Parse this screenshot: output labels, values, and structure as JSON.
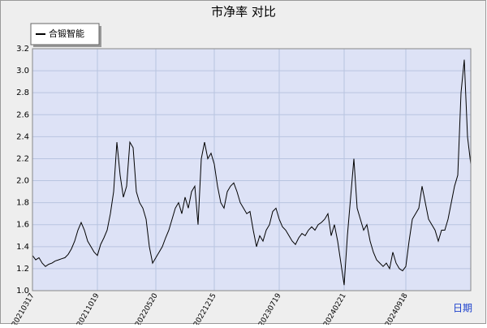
{
  "chart_data": {
    "type": "line",
    "title": "市净率  对比",
    "x_label": "日期",
    "categories": [
      "20210317",
      null,
      null,
      null,
      null,
      null,
      null,
      null,
      null,
      null,
      null,
      null,
      null,
      null,
      null,
      null,
      null,
      null,
      null,
      null,
      "20211019",
      null,
      null,
      null,
      null,
      null,
      null,
      null,
      null,
      null,
      null,
      null,
      null,
      null,
      null,
      null,
      null,
      null,
      "20220520",
      null,
      null,
      null,
      null,
      null,
      null,
      null,
      null,
      null,
      null,
      null,
      null,
      null,
      null,
      null,
      null,
      null,
      "20221215",
      null,
      null,
      null,
      null,
      null,
      null,
      null,
      null,
      null,
      null,
      null,
      null,
      null,
      null,
      null,
      null,
      null,
      null,
      null,
      "20230719",
      null,
      null,
      null,
      null,
      null,
      null,
      null,
      null,
      null,
      null,
      null,
      null,
      null,
      null,
      null,
      null,
      null,
      null,
      null,
      "20240221",
      null,
      null,
      null,
      null,
      null,
      null,
      null,
      null,
      null,
      null,
      null,
      null,
      null,
      null,
      null,
      null,
      null,
      null,
      "20240918",
      null,
      null,
      null,
      null,
      null,
      null,
      null,
      null,
      null,
      null,
      null,
      null,
      null,
      null,
      null,
      null,
      null,
      null,
      null,
      null
    ],
    "series": [
      {
        "name": "合锻智能",
        "color": "#000000",
        "values": [
          1.32,
          1.28,
          1.3,
          1.25,
          1.22,
          1.24,
          1.25,
          1.27,
          1.28,
          1.29,
          1.3,
          1.33,
          1.38,
          1.45,
          1.55,
          1.62,
          1.55,
          1.45,
          1.4,
          1.35,
          1.32,
          1.42,
          1.48,
          1.55,
          1.7,
          1.9,
          2.35,
          2.05,
          1.85,
          1.95,
          2.35,
          2.3,
          1.9,
          1.8,
          1.75,
          1.65,
          1.4,
          1.25,
          1.3,
          1.35,
          1.4,
          1.48,
          1.55,
          1.65,
          1.75,
          1.8,
          1.7,
          1.85,
          1.75,
          1.9,
          1.95,
          1.6,
          2.2,
          2.35,
          2.2,
          2.25,
          2.15,
          1.95,
          1.8,
          1.75,
          1.9,
          1.95,
          1.98,
          1.9,
          1.8,
          1.75,
          1.7,
          1.72,
          1.55,
          1.4,
          1.5,
          1.45,
          1.55,
          1.6,
          1.72,
          1.75,
          1.65,
          1.58,
          1.55,
          1.5,
          1.45,
          1.42,
          1.48,
          1.52,
          1.5,
          1.55,
          1.58,
          1.55,
          1.6,
          1.62,
          1.65,
          1.7,
          1.5,
          1.6,
          1.45,
          1.25,
          1.05,
          1.5,
          1.85,
          2.2,
          1.75,
          1.65,
          1.55,
          1.6,
          1.45,
          1.35,
          1.28,
          1.25,
          1.22,
          1.25,
          1.2,
          1.35,
          1.25,
          1.2,
          1.18,
          1.22,
          1.45,
          1.65,
          1.7,
          1.75,
          1.95,
          1.8,
          1.65,
          1.6,
          1.55,
          1.45,
          1.55,
          1.55,
          1.65,
          1.8,
          1.95,
          2.05,
          2.8,
          3.1,
          2.4,
          2.15
        ]
      }
    ],
    "ylim": [
      1.0,
      3.2
    ],
    "yticks": [
      {
        "value": 1.0,
        "label": "1.0"
      },
      1.2,
      1.4,
      1.6,
      1.8,
      {
        "value": 2.0,
        "label": "2.0"
      },
      2.2,
      2.4,
      2.6,
      2.8,
      {
        "value": 3.0,
        "label": "3.0"
      },
      3.2
    ],
    "grid": true,
    "legend": "top-left"
  }
}
